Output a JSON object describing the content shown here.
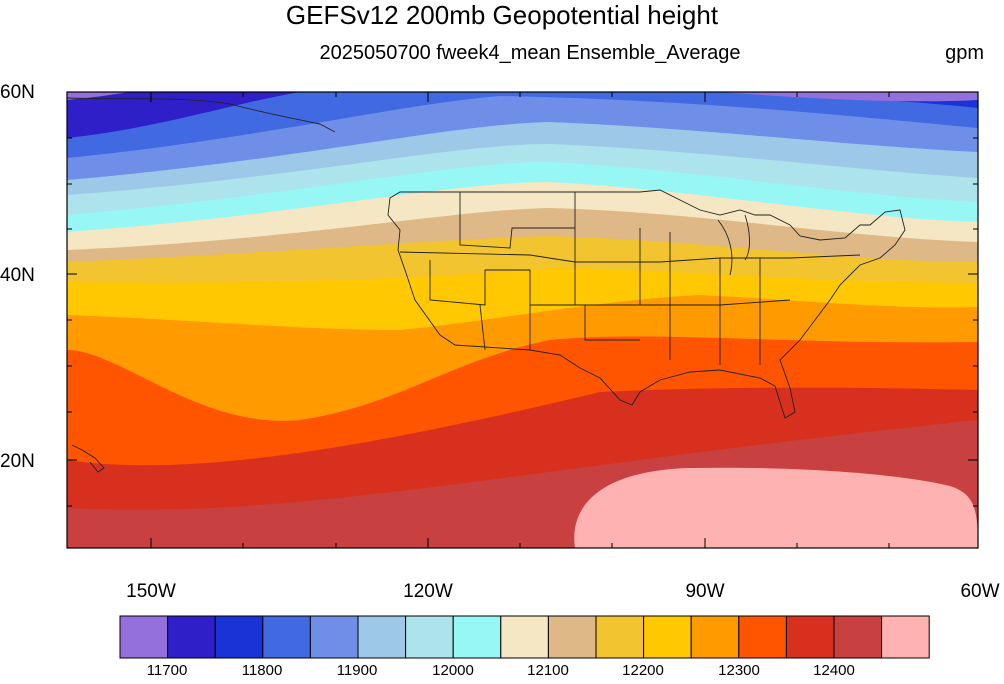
{
  "figure": {
    "title": "GEFSv12 200mb Geopotential height",
    "subtitle": "2025050700 fweek4_mean Ensemble_Average",
    "units": "gpm"
  },
  "map": {
    "lon_range": [
      -162,
      -60
    ],
    "lat_range": [
      10,
      60
    ],
    "lat_ticks": [
      "60N",
      "40N",
      "20N"
    ],
    "lon_ticks": [
      "150W",
      "120W",
      "90W",
      "60W"
    ]
  },
  "colorbar": {
    "colors": [
      "#9370db",
      "#2e1fc8",
      "#1a33d6",
      "#4169e1",
      "#6f8ee8",
      "#9dc8e8",
      "#ade4ec",
      "#97f7f4",
      "#f5e6c4",
      "#deb887",
      "#f2c430",
      "#ffc800",
      "#ff9a00",
      "#ff5500",
      "#d7301f",
      "#c84040",
      "#ffb2b2"
    ],
    "labels": [
      "11700",
      "11800",
      "11900",
      "12000",
      "12100",
      "12200",
      "12300",
      "12400"
    ]
  }
}
